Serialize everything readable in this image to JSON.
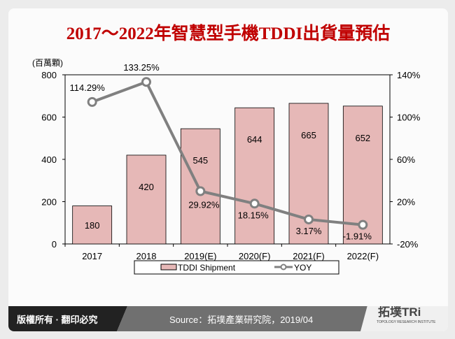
{
  "title": "2017～2022年智慧型手機TDDI出貨量預估",
  "chart_data": {
    "type": "bar+line",
    "categories": [
      "2017",
      "2018",
      "2019(E)",
      "2020(F)",
      "2021(F)",
      "2022(F)"
    ],
    "series": [
      {
        "name": "TDDI Shipment",
        "type": "bar",
        "axis": "left",
        "values": [
          180,
          420,
          545,
          644,
          665,
          652
        ],
        "labels": [
          "180",
          "420",
          "545",
          "644",
          "665",
          "652"
        ],
        "color": "#e6b8b7"
      },
      {
        "name": "YOY",
        "type": "line",
        "axis": "right",
        "values": [
          114.29,
          133.25,
          29.92,
          18.15,
          3.17,
          -1.91
        ],
        "labels": [
          "114.29%",
          "133.25%",
          "29.92%",
          "18.15%",
          "3.17%",
          "-1.91%"
        ],
        "color": "#808080"
      }
    ],
    "ylabel": "(百萬顆)",
    "ylim": [
      0,
      800
    ],
    "yticks": [
      "0",
      "200",
      "400",
      "600",
      "800"
    ],
    "y2lim": [
      -20,
      140
    ],
    "y2ticks": [
      "-20%",
      "20%",
      "60%",
      "100%",
      "140%"
    ],
    "legend": "bottom"
  },
  "footer": {
    "copyright": "版權所有 · 翻印必究",
    "source": "Source：拓墣產業研究院，2019/04",
    "logo": "拓墣TRi",
    "logo_sub": "TOPOLOGY RESEARCH INSTITUTE"
  }
}
